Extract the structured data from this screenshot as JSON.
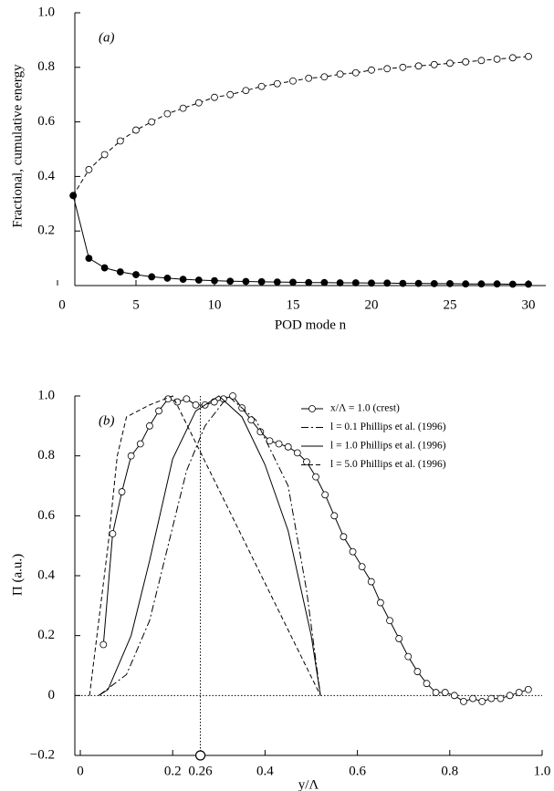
{
  "chart_data": [
    {
      "type": "line",
      "annotation": "(a)",
      "ylabel": "Fractional, cumulative energy",
      "xlabel": "POD mode n",
      "x": [
        1,
        2,
        3,
        4,
        5,
        6,
        7,
        8,
        9,
        10,
        11,
        12,
        13,
        14,
        15,
        16,
        17,
        18,
        19,
        20,
        21,
        22,
        23,
        24,
        25,
        26,
        27,
        28,
        29,
        30
      ],
      "series": [
        {
          "color": "#000000",
          "marker": "open-circle",
          "line_style": "dashed",
          "values": [
            0.33,
            0.425,
            0.48,
            0.53,
            0.57,
            0.6,
            0.63,
            0.65,
            0.67,
            0.69,
            0.7,
            0.715,
            0.73,
            0.74,
            0.75,
            0.76,
            0.765,
            0.775,
            0.78,
            0.79,
            0.795,
            0.8,
            0.805,
            0.81,
            0.815,
            0.82,
            0.825,
            0.83,
            0.835,
            0.84
          ]
        },
        {
          "color": "#000000",
          "marker": "filled-circle",
          "line_style": "solid",
          "values": [
            0.33,
            0.1,
            0.065,
            0.05,
            0.04,
            0.032,
            0.027,
            0.023,
            0.02,
            0.018,
            0.016,
            0.015,
            0.014,
            0.013,
            0.012,
            0.011,
            0.011,
            0.01,
            0.01,
            0.009,
            0.009,
            0.008,
            0.008,
            0.007,
            0.007,
            0.006,
            0.006,
            0.006,
            0.005,
            0.005
          ]
        }
      ],
      "xlim": [
        0,
        30
      ],
      "xticks": [
        0,
        5,
        10,
        15,
        20,
        25,
        30
      ],
      "ylim": [
        0,
        1
      ],
      "yticks": [
        {
          "value": 1,
          "label": "1.0"
        },
        0.8,
        0.6,
        0.4,
        0.2
      ]
    },
    {
      "type": "line",
      "annotation": "(b)",
      "ylabel": "Π (a.u.)",
      "xlabel": "y/Λ",
      "legend": "upper right",
      "guide_x": 0.26,
      "zero_line": true,
      "series": [
        {
          "name": "x/Λ = 1.0 (crest)",
          "color": "#000000",
          "marker": "open-circle",
          "line_style": "solid",
          "x": [
            0.05,
            0.07,
            0.09,
            0.11,
            0.13,
            0.15,
            0.17,
            0.19,
            0.21,
            0.23,
            0.25,
            0.27,
            0.29,
            0.31,
            0.33,
            0.35,
            0.37,
            0.39,
            0.41,
            0.43,
            0.45,
            0.47,
            0.49,
            0.51,
            0.53,
            0.55,
            0.57,
            0.59,
            0.61,
            0.63,
            0.65,
            0.67,
            0.69,
            0.71,
            0.73,
            0.75,
            0.77,
            0.79,
            0.81,
            0.83,
            0.85,
            0.87,
            0.89,
            0.91,
            0.93,
            0.95,
            0.97
          ],
          "values": [
            0.17,
            0.54,
            0.68,
            0.8,
            0.84,
            0.9,
            0.95,
            0.99,
            0.98,
            0.99,
            0.97,
            0.97,
            0.98,
            0.99,
            1.0,
            0.96,
            0.92,
            0.88,
            0.85,
            0.84,
            0.83,
            0.81,
            0.78,
            0.73,
            0.67,
            0.6,
            0.53,
            0.48,
            0.43,
            0.38,
            0.31,
            0.25,
            0.19,
            0.13,
            0.08,
            0.04,
            0.01,
            0.01,
            0.0,
            -0.02,
            -0.01,
            -0.02,
            -0.01,
            -0.01,
            0.0,
            0.01,
            0.02
          ]
        },
        {
          "name": "l = 0.1 Phillips et al. (1996)",
          "color": "#000000",
          "marker": "none",
          "line_style": "dashdot",
          "x": [
            0.04,
            0.1,
            0.15,
            0.19,
            0.23,
            0.27,
            0.32,
            0.38,
            0.45,
            0.49,
            0.52
          ],
          "values": [
            0,
            0.07,
            0.25,
            0.5,
            0.75,
            0.9,
            1.0,
            0.92,
            0.7,
            0.35,
            0
          ]
        },
        {
          "name": "l = 1.0 Phillips et al. (1996)",
          "color": "#000000",
          "marker": "none",
          "line_style": "solid",
          "x": [
            0.04,
            0.06,
            0.11,
            0.15,
            0.2,
            0.25,
            0.3,
            0.35,
            0.4,
            0.45,
            0.5,
            0.52
          ],
          "values": [
            0,
            0.02,
            0.2,
            0.45,
            0.79,
            0.95,
            1.0,
            0.93,
            0.77,
            0.55,
            0.2,
            0
          ]
        },
        {
          "name": "l = 5.0 Phillips et al. (1996)",
          "color": "#000000",
          "marker": "none",
          "line_style": "dashed",
          "x": [
            0.02,
            0.06,
            0.08,
            0.1,
            0.15,
            0.2,
            0.52
          ],
          "values": [
            0,
            0.5,
            0.8,
            0.93,
            0.97,
            1.0,
            0
          ]
        }
      ],
      "xlim": [
        0,
        1
      ],
      "xticks": [
        0,
        0.2,
        0.26,
        0.4,
        0.6,
        0.8,
        {
          "value": 1,
          "label": "1.0"
        }
      ],
      "ylim": [
        -0.2,
        1
      ],
      "yticks": [
        {
          "value": -0.2,
          "label": "−0.2"
        },
        0,
        0.2,
        0.4,
        0.6,
        0.8,
        {
          "value": 1,
          "label": "1.0"
        }
      ]
    }
  ]
}
